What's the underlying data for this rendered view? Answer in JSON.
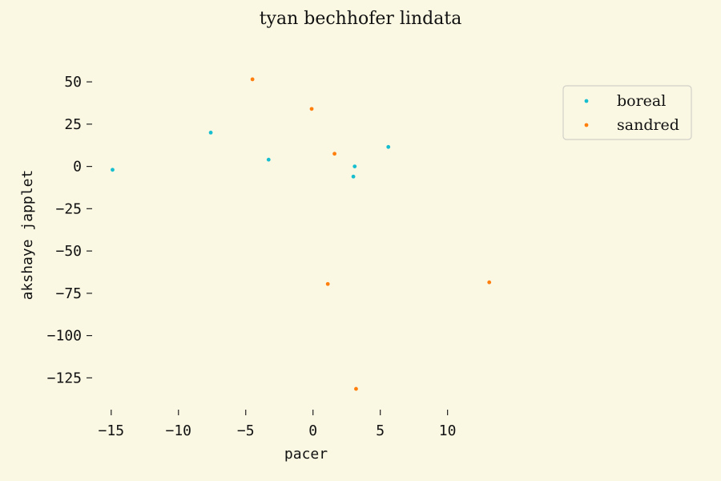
{
  "chart_data": {
    "type": "scatter",
    "title": "tyan bechhofer lindata",
    "xlabel": "pacer",
    "ylabel": "akshaye japplet",
    "xlim": [
      -16,
      18
    ],
    "ylim": [
      -140,
      60
    ],
    "xticks": [
      -15,
      -10,
      -5,
      0,
      5,
      10
    ],
    "yticks": [
      50,
      25,
      0,
      -25,
      -50,
      -75,
      -100,
      -125
    ],
    "xtick_labels": [
      "−15",
      "−10",
      "−5",
      "0",
      "5",
      "10"
    ],
    "ytick_labels": [
      "50",
      "25",
      "0",
      "−25",
      "−50",
      "−75",
      "−100",
      "−125"
    ],
    "grid": false,
    "legend_position": "top-right",
    "series": [
      {
        "name": "boreal",
        "color": "#17becf",
        "points": [
          {
            "x": -14.9,
            "y": -2
          },
          {
            "x": -7.6,
            "y": 20
          },
          {
            "x": -3.3,
            "y": 4
          },
          {
            "x": 3.1,
            "y": 0
          },
          {
            "x": 3.0,
            "y": -6
          },
          {
            "x": 5.6,
            "y": 11.5
          }
        ]
      },
      {
        "name": "sandred",
        "color": "#ff7f0e",
        "points": [
          {
            "x": -4.5,
            "y": 51.5
          },
          {
            "x": -0.1,
            "y": 34
          },
          {
            "x": 1.6,
            "y": 7.5
          },
          {
            "x": 1.1,
            "y": -69.5
          },
          {
            "x": 13.1,
            "y": -68.5
          },
          {
            "x": 3.2,
            "y": -131.5
          }
        ]
      }
    ]
  }
}
